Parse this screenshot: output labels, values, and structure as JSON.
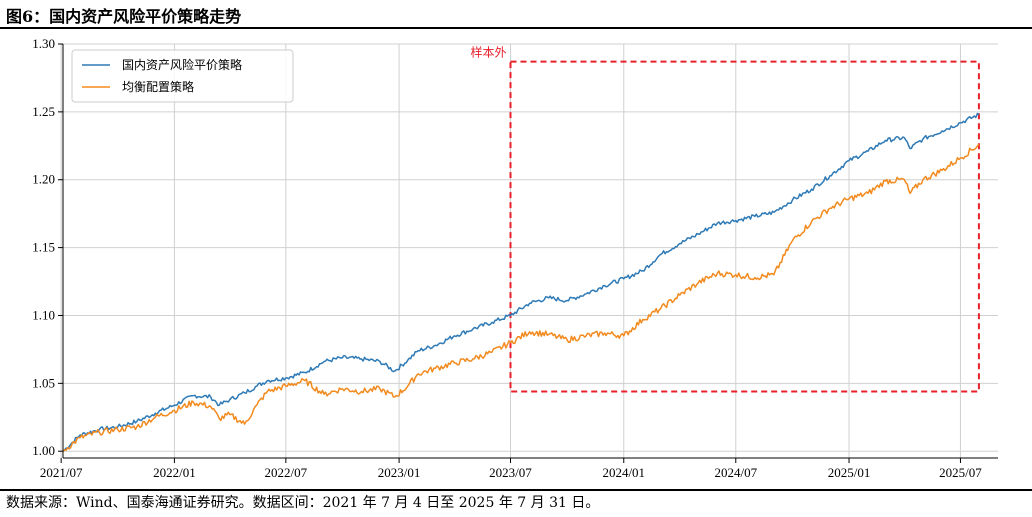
{
  "figure": {
    "title": "图6：国内资产风险平价策略走势",
    "source": "数据来源：Wind、国泰海通证券研究。数据区间：2021 年 7 月 4 日至 2025 年 7 月 31 日。"
  },
  "chart_data": {
    "type": "line",
    "x_ticks": [
      "2021/07",
      "2022/01",
      "2022/07",
      "2023/01",
      "2023/07",
      "2024/01",
      "2024/07",
      "2025/01",
      "2025/07"
    ],
    "y_ticks": [
      "1.00",
      "1.05",
      "1.10",
      "1.15",
      "1.20",
      "1.25",
      "1.30"
    ],
    "ylim": [
      0.995,
      1.3
    ],
    "xlim": [
      "2021-07-04",
      "2025-08-31"
    ],
    "grid": true,
    "legend_position": "top-left",
    "annotation": {
      "label": "样本外",
      "x_start": "2023-07-01",
      "x_end": "2025-07-31",
      "y_range": [
        1.044,
        1.287
      ],
      "color": "#e8202a"
    },
    "series": [
      {
        "name": "国内资产风险平价策略",
        "color": "#2e7ab6",
        "x": [
          "2021-07-04",
          "2021-08-01",
          "2021-09-01",
          "2021-10-01",
          "2021-11-01",
          "2021-12-01",
          "2022-01-01",
          "2022-02-01",
          "2022-03-01",
          "2022-03-15",
          "2022-04-01",
          "2022-04-25",
          "2022-05-15",
          "2022-06-01",
          "2022-07-01",
          "2022-08-01",
          "2022-09-01",
          "2022-10-01",
          "2022-11-01",
          "2022-12-01",
          "2022-12-25",
          "2023-01-15",
          "2023-02-01",
          "2023-03-01",
          "2023-04-01",
          "2023-05-01",
          "2023-06-01",
          "2023-07-01",
          "2023-08-01",
          "2023-09-01",
          "2023-10-01",
          "2023-11-01",
          "2023-12-01",
          "2024-01-01",
          "2024-02-01",
          "2024-03-01",
          "2024-04-01",
          "2024-05-01",
          "2024-06-01",
          "2024-07-01",
          "2024-08-01",
          "2024-09-01",
          "2024-10-01",
          "2024-11-01",
          "2024-12-01",
          "2025-01-01",
          "2025-02-01",
          "2025-03-01",
          "2025-04-01",
          "2025-04-10",
          "2025-05-01",
          "2025-06-01",
          "2025-07-01",
          "2025-07-31"
        ],
        "values": [
          1.0,
          1.012,
          1.016,
          1.018,
          1.022,
          1.028,
          1.034,
          1.041,
          1.04,
          1.034,
          1.038,
          1.043,
          1.048,
          1.052,
          1.054,
          1.058,
          1.066,
          1.069,
          1.068,
          1.066,
          1.059,
          1.067,
          1.074,
          1.078,
          1.085,
          1.09,
          1.095,
          1.1,
          1.109,
          1.113,
          1.111,
          1.116,
          1.122,
          1.127,
          1.133,
          1.145,
          1.153,
          1.16,
          1.168,
          1.17,
          1.173,
          1.176,
          1.185,
          1.193,
          1.203,
          1.214,
          1.221,
          1.229,
          1.231,
          1.223,
          1.23,
          1.236,
          1.242,
          1.248
        ]
      },
      {
        "name": "均衡配置策略",
        "color": "#f28a1e",
        "x": [
          "2021-07-04",
          "2021-08-01",
          "2021-09-01",
          "2021-10-01",
          "2021-11-01",
          "2021-12-01",
          "2022-01-01",
          "2022-02-01",
          "2022-03-01",
          "2022-03-15",
          "2022-04-01",
          "2022-04-25",
          "2022-05-15",
          "2022-06-01",
          "2022-07-01",
          "2022-08-01",
          "2022-09-01",
          "2022-10-01",
          "2022-11-01",
          "2022-12-01",
          "2022-12-25",
          "2023-01-15",
          "2023-02-01",
          "2023-03-01",
          "2023-04-01",
          "2023-05-01",
          "2023-06-01",
          "2023-07-01",
          "2023-08-01",
          "2023-09-01",
          "2023-10-01",
          "2023-11-01",
          "2023-12-01",
          "2024-01-01",
          "2024-02-01",
          "2024-03-01",
          "2024-04-01",
          "2024-05-01",
          "2024-06-01",
          "2024-07-01",
          "2024-08-01",
          "2024-09-01",
          "2024-10-01",
          "2024-11-01",
          "2024-12-01",
          "2025-01-01",
          "2025-02-01",
          "2025-03-01",
          "2025-04-01",
          "2025-04-10",
          "2025-05-01",
          "2025-06-01",
          "2025-07-01",
          "2025-07-31"
        ],
        "values": [
          1.0,
          1.01,
          1.014,
          1.016,
          1.018,
          1.025,
          1.03,
          1.036,
          1.033,
          1.024,
          1.027,
          1.02,
          1.034,
          1.044,
          1.048,
          1.052,
          1.042,
          1.046,
          1.044,
          1.046,
          1.04,
          1.048,
          1.057,
          1.061,
          1.065,
          1.068,
          1.073,
          1.08,
          1.088,
          1.086,
          1.082,
          1.085,
          1.087,
          1.085,
          1.097,
          1.105,
          1.115,
          1.124,
          1.131,
          1.13,
          1.128,
          1.13,
          1.155,
          1.169,
          1.179,
          1.186,
          1.19,
          1.199,
          1.2,
          1.19,
          1.2,
          1.207,
          1.216,
          1.226
        ]
      }
    ]
  }
}
